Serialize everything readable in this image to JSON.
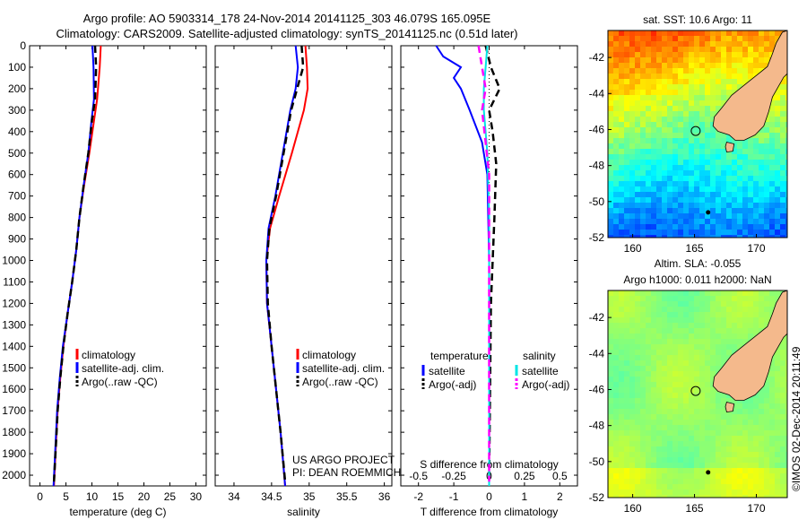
{
  "title": {
    "line1": "Argo profile: AO 5903314_178 24-Nov-2014 20141125_303 46.079S 165.095E",
    "line2": "Climatology: CARS2009. Satellite-adjusted climatology: synTS_20141125.nc (0.51d later)"
  },
  "colors": {
    "climatology": "#ff0000",
    "satellite": "#0000ff",
    "argo": "#000000",
    "sat_salinity": "#00e5e5",
    "argo_salinity": "#ff00ff",
    "land": "#f4b98c"
  },
  "chart_data": [
    {
      "type": "line",
      "name": "temperature",
      "xlabel": "temperature (deg C)",
      "ylabel": "",
      "xlim": [
        -2,
        32
      ],
      "ylim": [
        2050,
        0
      ],
      "xticks": [
        0,
        5,
        10,
        15,
        20,
        25,
        30
      ],
      "yticks": [
        0,
        100,
        200,
        300,
        400,
        500,
        600,
        700,
        800,
        900,
        1000,
        1100,
        1200,
        1300,
        1400,
        1500,
        1600,
        1700,
        1800,
        1900,
        2000
      ],
      "series": [
        {
          "name": "climatology",
          "style": "solid",
          "color": "#ff0000",
          "points": [
            [
              11.7,
              0
            ],
            [
              11.5,
              100
            ],
            [
              11.0,
              250
            ],
            [
              10.4,
              350
            ],
            [
              9.5,
              500
            ],
            [
              8.5,
              650
            ],
            [
              7.6,
              800
            ],
            [
              7.0,
              950
            ],
            [
              6.2,
              1100
            ],
            [
              5.3,
              1250
            ],
            [
              4.5,
              1400
            ],
            [
              3.9,
              1550
            ],
            [
              3.4,
              1700
            ],
            [
              3.1,
              1850
            ],
            [
              2.7,
              2050
            ]
          ]
        },
        {
          "name": "satellite-adj. clim.",
          "style": "solid",
          "color": "#0000ff",
          "points": [
            [
              10.1,
              0
            ],
            [
              10.3,
              100
            ],
            [
              10.4,
              250
            ],
            [
              9.9,
              350
            ],
            [
              9.3,
              500
            ],
            [
              8.4,
              650
            ],
            [
              7.6,
              800
            ],
            [
              7.0,
              950
            ],
            [
              6.2,
              1100
            ],
            [
              5.3,
              1250
            ],
            [
              4.4,
              1400
            ],
            [
              3.8,
              1550
            ],
            [
              3.3,
              1700
            ],
            [
              3.0,
              1850
            ],
            [
              2.6,
              2050
            ]
          ]
        },
        {
          "name": "Argo(..raw -QC)",
          "style": "dashed",
          "color": "#000000",
          "points": [
            [
              10.6,
              0
            ],
            [
              10.8,
              100
            ],
            [
              10.6,
              250
            ],
            [
              10.0,
              350
            ],
            [
              9.3,
              500
            ],
            [
              8.4,
              650
            ],
            [
              7.6,
              800
            ],
            [
              7.0,
              950
            ],
            [
              6.2,
              1100
            ],
            [
              5.3,
              1250
            ],
            [
              4.5,
              1400
            ],
            [
              3.9,
              1550
            ],
            [
              3.4,
              1700
            ],
            [
              3.1,
              1850
            ],
            [
              2.7,
              2030
            ]
          ]
        }
      ],
      "legend": [
        "climatology",
        "satellite-adj. clim.",
        "Argo(..raw -QC)"
      ],
      "legend_placement": "lower-center"
    },
    {
      "type": "line",
      "name": "salinity",
      "xlabel": "salinity",
      "ylabel": "",
      "xlim": [
        33.75,
        36.1
      ],
      "ylim": [
        2050,
        0
      ],
      "xticks": [
        34,
        34.5,
        35,
        35.5,
        36
      ],
      "series": [
        {
          "name": "climatology",
          "style": "solid",
          "color": "#ff0000",
          "points": [
            [
              34.95,
              0
            ],
            [
              34.97,
              100
            ],
            [
              34.98,
              200
            ],
            [
              34.93,
              300
            ],
            [
              34.77,
              500
            ],
            [
              34.6,
              700
            ],
            [
              34.48,
              850
            ],
            [
              34.43,
              1000
            ],
            [
              34.44,
              1200
            ],
            [
              34.5,
              1400
            ],
            [
              34.56,
              1600
            ],
            [
              34.62,
              1800
            ],
            [
              34.68,
              2050
            ]
          ]
        },
        {
          "name": "satellite-adj. clim.",
          "style": "solid",
          "color": "#0000ff",
          "points": [
            [
              34.82,
              0
            ],
            [
              34.85,
              100
            ],
            [
              34.82,
              200
            ],
            [
              34.75,
              300
            ],
            [
              34.65,
              500
            ],
            [
              34.55,
              700
            ],
            [
              34.46,
              850
            ],
            [
              34.43,
              1000
            ],
            [
              34.44,
              1200
            ],
            [
              34.5,
              1400
            ],
            [
              34.56,
              1600
            ],
            [
              34.62,
              1800
            ],
            [
              34.68,
              2050
            ]
          ]
        },
        {
          "name": "Argo(..raw -QC)",
          "style": "dashed",
          "color": "#000000",
          "points": [
            [
              34.9,
              0
            ],
            [
              34.92,
              100
            ],
            [
              34.84,
              200
            ],
            [
              34.76,
              300
            ],
            [
              34.66,
              500
            ],
            [
              34.56,
              700
            ],
            [
              34.47,
              850
            ],
            [
              34.44,
              1000
            ],
            [
              34.45,
              1200
            ],
            [
              34.5,
              1400
            ],
            [
              34.56,
              1600
            ],
            [
              34.62,
              1800
            ],
            [
              34.68,
              2030
            ]
          ]
        }
      ],
      "legend": [
        "climatology",
        "satellite-adj. clim.",
        "Argo(..raw -QC)"
      ],
      "legend_placement": "lower-center",
      "annotation": [
        "US ARGO PROJECT",
        "PI: DEAN ROEMMICH"
      ]
    },
    {
      "type": "line",
      "name": "difference",
      "xlabel": "T difference from climatology",
      "x2label": "S difference from climatology",
      "xlim": [
        -2.5,
        2.5
      ],
      "ylim": [
        2050,
        0
      ],
      "xticks": [
        -2,
        -1,
        0,
        1,
        2
      ],
      "x2ticks": [
        "-0.5",
        "-0.25",
        "0",
        "0.25",
        "0.5"
      ],
      "series": [
        {
          "name": "temperature satellite",
          "style": "solid",
          "color": "#0000ff",
          "points": [
            [
              -1.5,
              0
            ],
            [
              -1.3,
              50
            ],
            [
              -0.8,
              100
            ],
            [
              -1.0,
              150
            ],
            [
              -0.8,
              200
            ],
            [
              -0.55,
              300
            ],
            [
              -0.2,
              450
            ],
            [
              -0.05,
              600
            ],
            [
              0,
              1000
            ],
            [
              0,
              2050
            ]
          ]
        },
        {
          "name": "temperature Argo(-adj)",
          "style": "dashed",
          "color": "#000000",
          "points": [
            [
              -0.1,
              0
            ],
            [
              0.05,
              100
            ],
            [
              0.3,
              200
            ],
            [
              0.0,
              300
            ],
            [
              0.1,
              400
            ],
            [
              0.2,
              550
            ],
            [
              0.15,
              800
            ],
            [
              0.05,
              1200
            ],
            [
              0,
              2030
            ]
          ]
        },
        {
          "name": "salinity satellite",
          "style": "solid",
          "color": "#00e5e5",
          "points": [
            [
              -0.05,
              0
            ],
            [
              -0.1,
              100
            ],
            [
              -0.15,
              200
            ],
            [
              -0.15,
              300
            ],
            [
              -0.05,
              500
            ],
            [
              0,
              800
            ],
            [
              0,
              2050
            ]
          ]
        },
        {
          "name": "salinity Argo(-adj)",
          "style": "dashed",
          "color": "#ff00ff",
          "points": [
            [
              -0.3,
              0
            ],
            [
              -0.2,
              100
            ],
            [
              -0.1,
              200
            ],
            [
              -0.2,
              300
            ],
            [
              -0.1,
              450
            ],
            [
              0,
              600
            ],
            [
              0,
              2030
            ]
          ]
        }
      ],
      "legend": {
        "temperature_header": "temperature",
        "salinity_header": "salinity",
        "satellite": "satellite",
        "argo": "Argo(-adj)"
      },
      "legend_placement": "lower-center"
    },
    {
      "type": "heatmap",
      "name": "sst_map",
      "title": "sat. SST: 10.6  Argo: 11",
      "xlim": [
        158,
        172.5
      ],
      "ylim": [
        -52,
        -40.5
      ],
      "xticks": [
        160,
        165,
        170
      ],
      "yticks": [
        -42,
        -44,
        -46,
        -48,
        -50,
        -52
      ],
      "argo_position": [
        165.095,
        -46.079
      ]
    },
    {
      "type": "heatmap",
      "name": "sla_map",
      "title": "Altim. SLA: -0.055",
      "subtitle": "Argo h1000: 0.011  h2000: NaN",
      "xlim": [
        158,
        172.5
      ],
      "ylim": [
        -52,
        -40.5
      ],
      "xticks": [
        160,
        165,
        170
      ],
      "yticks": [
        -42,
        -44,
        -46,
        -48,
        -50,
        -52
      ],
      "argo_position": [
        165.095,
        -46.079
      ]
    }
  ],
  "watermark": "©IMOS 02-Dec-2014 20:11:49"
}
